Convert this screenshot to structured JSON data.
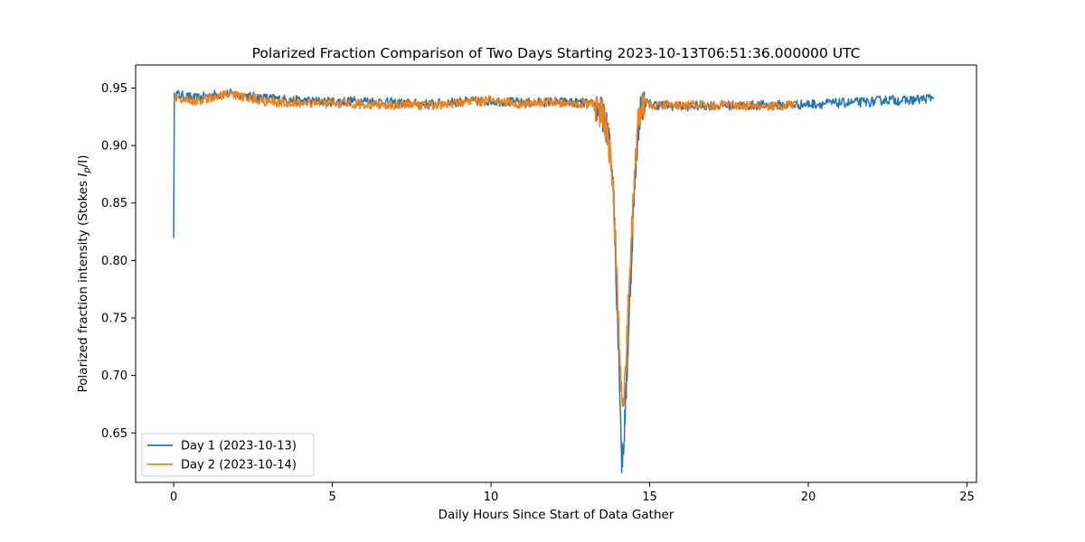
{
  "chart_data": {
    "type": "line",
    "title": "Polarized Fraction Comparison of Two Days Starting 2023-10-13T06:51:36.000000 UTC",
    "xlabel": "Daily Hours Since Start of Data Gather",
    "ylabel_main": "Polarized fraction intensity (Stokes ",
    "ylabel_math": "I",
    "ylabel_sub": "p",
    "ylabel_tail": "/I)",
    "xlim": [
      -1.2,
      25.3
    ],
    "ylim": [
      0.607,
      0.97
    ],
    "x_ticks": [
      0,
      5,
      10,
      15,
      20,
      25
    ],
    "x_tick_labels": [
      "0",
      "5",
      "10",
      "15",
      "20",
      "25"
    ],
    "y_ticks": [
      0.65,
      0.7,
      0.75,
      0.8,
      0.85,
      0.9,
      0.95
    ],
    "y_tick_labels": [
      "0.65",
      "0.70",
      "0.75",
      "0.80",
      "0.85",
      "0.90",
      "0.95"
    ],
    "grid": false,
    "legend_position": "lower-left",
    "series": [
      {
        "name": "Day 1 (2023-10-13)",
        "color": "#1f77b4",
        "x": [
          0.0,
          0.02,
          0.05,
          0.3,
          0.7,
          1.2,
          1.8,
          2.3,
          3.0,
          4.0,
          5.0,
          6.0,
          7.0,
          8.0,
          9.0,
          10.0,
          11.0,
          12.0,
          13.0,
          13.3,
          13.5,
          13.7,
          13.85,
          13.95,
          14.05,
          14.12,
          14.18,
          14.25,
          14.35,
          14.5,
          14.6,
          14.7,
          14.85,
          15.0,
          15.5,
          16.0,
          17.0,
          18.0,
          19.0,
          20.0,
          21.0,
          22.0,
          22.5,
          23.0,
          23.5,
          23.95
        ],
        "y": [
          0.823,
          0.942,
          0.945,
          0.943,
          0.941,
          0.944,
          0.945,
          0.943,
          0.941,
          0.939,
          0.938,
          0.939,
          0.937,
          0.936,
          0.938,
          0.939,
          0.937,
          0.938,
          0.937,
          0.935,
          0.928,
          0.91,
          0.87,
          0.78,
          0.7,
          0.625,
          0.64,
          0.68,
          0.75,
          0.85,
          0.9,
          0.93,
          0.938,
          0.936,
          0.935,
          0.934,
          0.935,
          0.935,
          0.935,
          0.936,
          0.937,
          0.938,
          0.94,
          0.939,
          0.94,
          0.942
        ]
      },
      {
        "name": "Day 2 (2023-10-14)",
        "color": "#ff7f0e",
        "x": [
          0.0,
          0.3,
          0.7,
          1.2,
          1.8,
          2.3,
          3.0,
          4.0,
          5.0,
          6.0,
          7.0,
          8.0,
          9.0,
          10.0,
          11.0,
          12.0,
          13.0,
          13.3,
          13.5,
          13.7,
          13.85,
          13.95,
          14.05,
          14.12,
          14.18,
          14.25,
          14.35,
          14.5,
          14.6,
          14.7,
          14.85,
          15.0,
          15.5,
          16.0,
          17.0,
          18.0,
          19.0,
          19.6
        ],
        "y": [
          0.941,
          0.94,
          0.938,
          0.942,
          0.944,
          0.942,
          0.938,
          0.937,
          0.937,
          0.936,
          0.935,
          0.935,
          0.937,
          0.939,
          0.936,
          0.938,
          0.936,
          0.934,
          0.927,
          0.905,
          0.86,
          0.8,
          0.72,
          0.68,
          0.67,
          0.71,
          0.78,
          0.86,
          0.91,
          0.93,
          0.937,
          0.935,
          0.936,
          0.935,
          0.935,
          0.934,
          0.934,
          0.936
        ]
      }
    ]
  }
}
